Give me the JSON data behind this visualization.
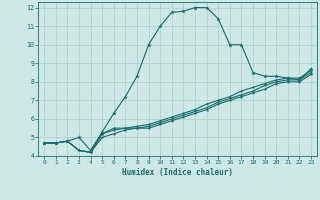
{
  "title": "",
  "xlabel": "Humidex (Indice chaleur)",
  "ylabel": "",
  "bg_color": "#cde8e5",
  "line_color": "#1a6b6b",
  "grid_color": "#aecfcc",
  "xlim": [
    -0.5,
    23.5
  ],
  "ylim": [
    4,
    12.3
  ],
  "xticks": [
    0,
    1,
    2,
    3,
    4,
    5,
    6,
    7,
    8,
    9,
    10,
    11,
    12,
    13,
    14,
    15,
    16,
    17,
    18,
    19,
    20,
    21,
    22,
    23
  ],
  "yticks": [
    4,
    5,
    6,
    7,
    8,
    9,
    10,
    11,
    12
  ],
  "lines": [
    {
      "x": [
        0,
        1,
        2,
        3,
        4,
        5,
        6,
        7,
        8,
        9,
        10,
        11,
        12,
        13,
        14,
        15,
        16,
        17,
        18,
        19,
        20,
        21,
        22,
        23
      ],
      "y": [
        4.7,
        4.7,
        4.8,
        5.0,
        4.3,
        5.3,
        6.3,
        7.2,
        8.3,
        10.0,
        11.0,
        11.75,
        11.8,
        12.0,
        12.0,
        11.4,
        10.0,
        10.0,
        8.5,
        8.3,
        8.3,
        8.2,
        8.1,
        8.7
      ]
    },
    {
      "x": [
        0,
        1,
        2,
        3,
        4,
        5,
        6,
        7,
        8,
        9,
        10,
        11,
        12,
        13,
        14,
        15,
        16,
        17,
        18,
        19,
        20,
        21,
        22,
        23
      ],
      "y": [
        4.7,
        4.7,
        4.8,
        4.3,
        4.2,
        5.2,
        5.5,
        5.5,
        5.6,
        5.7,
        5.9,
        6.1,
        6.3,
        6.5,
        6.8,
        7.0,
        7.2,
        7.5,
        7.7,
        7.9,
        8.1,
        8.2,
        8.2,
        8.6
      ]
    },
    {
      "x": [
        0,
        1,
        2,
        3,
        4,
        5,
        6,
        7,
        8,
        9,
        10,
        11,
        12,
        13,
        14,
        15,
        16,
        17,
        18,
        19,
        20,
        21,
        22,
        23
      ],
      "y": [
        4.7,
        4.7,
        4.8,
        4.3,
        4.2,
        5.2,
        5.4,
        5.5,
        5.5,
        5.6,
        5.8,
        6.0,
        6.2,
        6.4,
        6.6,
        6.9,
        7.1,
        7.3,
        7.5,
        7.8,
        8.0,
        8.1,
        8.1,
        8.5
      ]
    },
    {
      "x": [
        0,
        1,
        2,
        3,
        4,
        5,
        6,
        7,
        8,
        9,
        10,
        11,
        12,
        13,
        14,
        15,
        16,
        17,
        18,
        19,
        20,
        21,
        22,
        23
      ],
      "y": [
        4.7,
        4.7,
        4.8,
        4.3,
        4.2,
        5.0,
        5.2,
        5.4,
        5.5,
        5.5,
        5.7,
        5.9,
        6.1,
        6.3,
        6.5,
        6.8,
        7.0,
        7.2,
        7.4,
        7.6,
        7.9,
        8.0,
        8.0,
        8.4
      ]
    }
  ]
}
